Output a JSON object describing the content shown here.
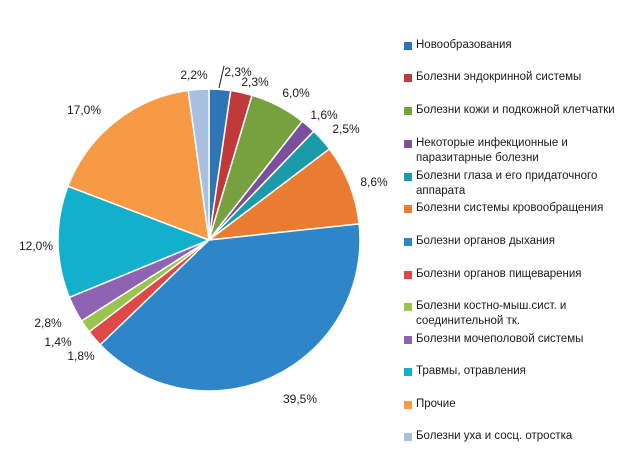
{
  "chart_data": {
    "type": "pie",
    "title": "",
    "legend_position": "right",
    "unit": "%",
    "slices": [
      {
        "name": "Новообразования",
        "value": 2.3,
        "label": "2,3%",
        "color": "#2e75b6"
      },
      {
        "name": "Болезни эндокринной системы",
        "value": 2.3,
        "label": "2,3%",
        "color": "#c0393b"
      },
      {
        "name": "Болезни кожи и подкожной клетчатки",
        "value": 6.0,
        "label": "6,0%",
        "color": "#77a03f"
      },
      {
        "name": "Некоторые инфекционные и паразитарные болезни",
        "value": 1.6,
        "label": "1,6%",
        "color": "#7b4f9d"
      },
      {
        "name": "Болезни глаза и его придаточного аппарата",
        "value": 2.5,
        "label": "2,5%",
        "color": "#1b9aaa"
      },
      {
        "name": "Болезни системы кровообращения",
        "value": 8.6,
        "label": "8,6%",
        "color": "#e97c30"
      },
      {
        "name": "Болезни органов дыхания",
        "value": 39.5,
        "label": "39,5%",
        "color": "#2e86c8"
      },
      {
        "name": "Болезни органов пищеварения",
        "value": 1.8,
        "label": "1,8%",
        "color": "#e04848"
      },
      {
        "name": "Болезни костно-мыш.сист. и соединительной тк.",
        "value": 1.4,
        "label": "1,4%",
        "color": "#98c44f"
      },
      {
        "name": "Болезни мочеполовой системы",
        "value": 2.8,
        "label": "2,8%",
        "color": "#8e63b4"
      },
      {
        "name": "Травмы, отравления",
        "value": 12.0,
        "label": "12,0%",
        "color": "#13b0cc"
      },
      {
        "name": "Прочие",
        "value": 17.0,
        "label": "17,0%",
        "color": "#f79a45"
      },
      {
        "name": "Болезни уха и сосц. отростка",
        "value": 2.2,
        "label": "2,2%",
        "color": "#a9bfe0"
      }
    ]
  }
}
